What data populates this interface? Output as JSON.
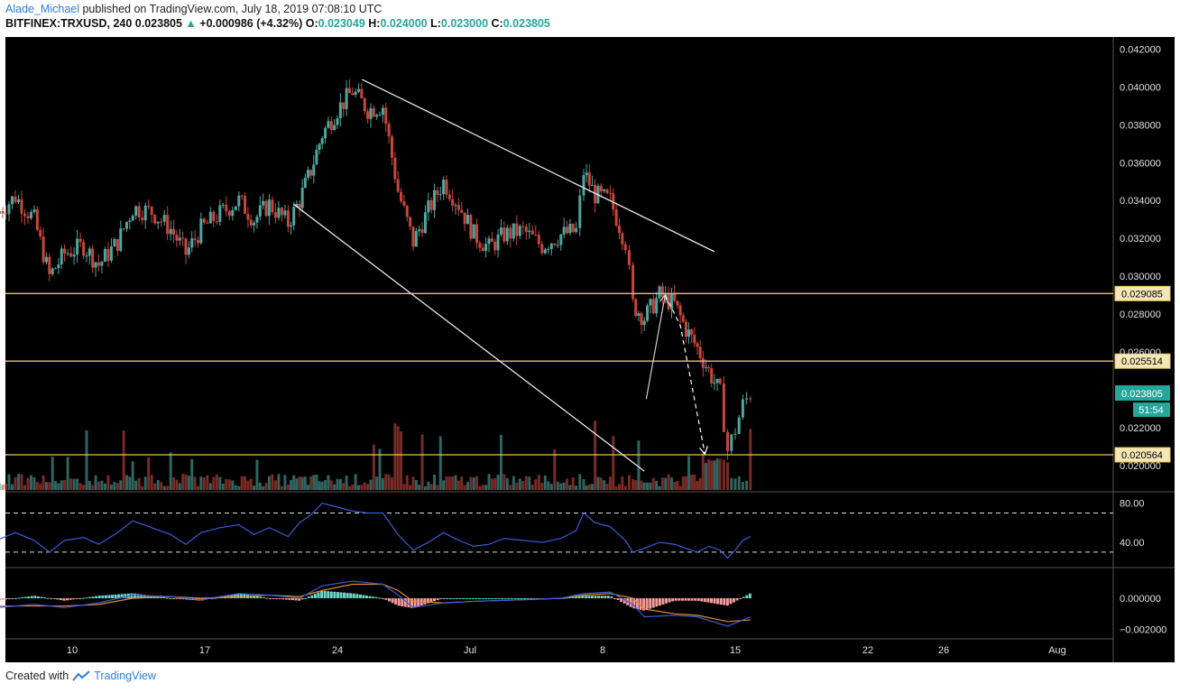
{
  "header": {
    "author": "Alade_Michael",
    "published_text": "published on TradingView.com, July 18, 2019 07:08:10 UTC",
    "symbol": "BITFINEX:TRXUSD, 240",
    "last": "0.023805",
    "change_arrow": "▲",
    "change": "+0.000986 (+4.32%)",
    "o_label": "O:",
    "o_value": "0.023049",
    "h_label": "H:",
    "h_value": "0.024000",
    "l_label": "L:",
    "l_value": "0.023000",
    "c_label": "C:",
    "c_value": "0.023805"
  },
  "footer": {
    "created_with": "Created with",
    "brand": "TradingView"
  },
  "colors": {
    "background": "#000000",
    "up": "#4ea6a0",
    "down": "#c8463c",
    "level_line": "#e6c45a",
    "rsi_line": "#3a5bd9",
    "macd_line": "#3a5bd9",
    "signal_line": "#e08a2c",
    "price_badge": "#26a69a"
  },
  "chart_data": [
    {
      "type": "candlestick",
      "symbol": "BITFINEX:TRXUSD",
      "timeframe": "240",
      "x_ticks": [
        "10",
        "17",
        "24",
        "Jul",
        "8",
        "15",
        "22",
        "26",
        "Aug"
      ],
      "y_ticks": [
        "0.042000",
        "0.040000",
        "0.038000",
        "0.036000",
        "0.034000",
        "0.032000",
        "0.030000",
        "0.028000",
        "0.026000",
        "0.022000",
        "0.020000"
      ],
      "ylim": [
        0.0188,
        0.0425
      ],
      "levels": [
        {
          "label": "0.029085",
          "value": 0.029085
        },
        {
          "label": "0.025514",
          "value": 0.025514
        },
        {
          "label": "0.020564",
          "value": 0.020564
        }
      ],
      "current_price_label": "0.023805",
      "countdown": "51:54",
      "trendlines": [
        {
          "name": "upper",
          "from": {
            "day": 25.3,
            "price": 0.0404
          },
          "to": {
            "day": 43.9,
            "price": 0.0313
          }
        },
        {
          "name": "lower",
          "from": {
            "day": 21.7,
            "price": 0.0338
          },
          "to": {
            "day": 40.2,
            "price": 0.0197
          }
        }
      ],
      "projection": [
        {
          "day": 40.3,
          "price": 0.0235
        },
        {
          "day": 41.3,
          "price": 0.029
        },
        {
          "day": 42.1,
          "price": 0.0274
        },
        {
          "day": 43.4,
          "price": 0.0206
        }
      ],
      "closes": [
        {
          "day": 6.0,
          "close": 0.0333
        },
        {
          "day": 7.0,
          "close": 0.0342
        },
        {
          "day": 8.0,
          "close": 0.033
        },
        {
          "day": 8.8,
          "close": 0.03
        },
        {
          "day": 9.6,
          "close": 0.0312
        },
        {
          "day": 10.6,
          "close": 0.0316
        },
        {
          "day": 11.4,
          "close": 0.0306
        },
        {
          "day": 12.4,
          "close": 0.0318
        },
        {
          "day": 13.2,
          "close": 0.0336
        },
        {
          "day": 14.2,
          "close": 0.0334
        },
        {
          "day": 15.2,
          "close": 0.0325
        },
        {
          "day": 16.0,
          "close": 0.0312
        },
        {
          "day": 16.8,
          "close": 0.0325
        },
        {
          "day": 17.8,
          "close": 0.0333
        },
        {
          "day": 18.8,
          "close": 0.034
        },
        {
          "day": 19.6,
          "close": 0.033
        },
        {
          "day": 20.4,
          "close": 0.0338
        },
        {
          "day": 21.4,
          "close": 0.0328
        },
        {
          "day": 22.0,
          "close": 0.034
        },
        {
          "day": 22.6,
          "close": 0.0356
        },
        {
          "day": 23.2,
          "close": 0.0375
        },
        {
          "day": 24.0,
          "close": 0.0388
        },
        {
          "day": 24.8,
          "close": 0.0398
        },
        {
          "day": 25.6,
          "close": 0.0388
        },
        {
          "day": 26.4,
          "close": 0.039
        },
        {
          "day": 27.2,
          "close": 0.0345
        },
        {
          "day": 28.0,
          "close": 0.0318
        },
        {
          "day": 28.8,
          "close": 0.0335
        },
        {
          "day": 29.6,
          "close": 0.035
        },
        {
          "day": 30.4,
          "close": 0.0338
        },
        {
          "day": 31.2,
          "close": 0.0322
        },
        {
          "day": 32.0,
          "close": 0.0315
        },
        {
          "day": 32.8,
          "close": 0.0322
        },
        {
          "day": 33.8,
          "close": 0.0324
        },
        {
          "day": 34.8,
          "close": 0.0316
        },
        {
          "day": 35.8,
          "close": 0.0322
        },
        {
          "day": 36.6,
          "close": 0.0324
        },
        {
          "day": 37.0,
          "close": 0.0355
        },
        {
          "day": 37.6,
          "close": 0.0343
        },
        {
          "day": 38.4,
          "close": 0.034
        },
        {
          "day": 39.2,
          "close": 0.0318
        },
        {
          "day": 39.6,
          "close": 0.0285
        },
        {
          "day": 40.2,
          "close": 0.0278
        },
        {
          "day": 41.0,
          "close": 0.029
        },
        {
          "day": 41.8,
          "close": 0.0285
        },
        {
          "day": 42.4,
          "close": 0.0272
        },
        {
          "day": 43.0,
          "close": 0.0262
        },
        {
          "day": 43.6,
          "close": 0.025
        },
        {
          "day": 44.2,
          "close": 0.0238
        },
        {
          "day": 44.6,
          "close": 0.0208
        },
        {
          "day": 45.0,
          "close": 0.0219
        },
        {
          "day": 45.4,
          "close": 0.0232
        },
        {
          "day": 45.8,
          "close": 0.0238
        }
      ]
    },
    {
      "type": "line",
      "name": "RSI",
      "y_ticks": [
        "80.00",
        "40.00"
      ],
      "ylim": [
        17,
        88
      ],
      "bands": [
        70,
        30
      ],
      "points": [
        {
          "day": 6.0,
          "value": 42
        },
        {
          "day": 7.0,
          "value": 50
        },
        {
          "day": 8.0,
          "value": 42
        },
        {
          "day": 8.8,
          "value": 30
        },
        {
          "day": 9.6,
          "value": 42
        },
        {
          "day": 10.6,
          "value": 45
        },
        {
          "day": 11.4,
          "value": 38
        },
        {
          "day": 12.4,
          "value": 50
        },
        {
          "day": 13.2,
          "value": 62
        },
        {
          "day": 14.2,
          "value": 55
        },
        {
          "day": 15.2,
          "value": 48
        },
        {
          "day": 16.0,
          "value": 38
        },
        {
          "day": 16.8,
          "value": 50
        },
        {
          "day": 17.8,
          "value": 55
        },
        {
          "day": 18.8,
          "value": 58
        },
        {
          "day": 19.6,
          "value": 48
        },
        {
          "day": 20.4,
          "value": 55
        },
        {
          "day": 21.4,
          "value": 46
        },
        {
          "day": 22.0,
          "value": 60
        },
        {
          "day": 22.6,
          "value": 68
        },
        {
          "day": 23.2,
          "value": 80
        },
        {
          "day": 24.0,
          "value": 76
        },
        {
          "day": 24.8,
          "value": 72
        },
        {
          "day": 25.6,
          "value": 70
        },
        {
          "day": 26.4,
          "value": 70
        },
        {
          "day": 27.2,
          "value": 48
        },
        {
          "day": 28.0,
          "value": 32
        },
        {
          "day": 28.8,
          "value": 40
        },
        {
          "day": 29.6,
          "value": 50
        },
        {
          "day": 30.4,
          "value": 42
        },
        {
          "day": 31.2,
          "value": 36
        },
        {
          "day": 32.0,
          "value": 38
        },
        {
          "day": 32.8,
          "value": 44
        },
        {
          "day": 33.8,
          "value": 42
        },
        {
          "day": 34.8,
          "value": 40
        },
        {
          "day": 35.8,
          "value": 44
        },
        {
          "day": 36.6,
          "value": 52
        },
        {
          "day": 37.0,
          "value": 70
        },
        {
          "day": 37.6,
          "value": 60
        },
        {
          "day": 38.4,
          "value": 56
        },
        {
          "day": 39.2,
          "value": 42
        },
        {
          "day": 39.6,
          "value": 30
        },
        {
          "day": 40.2,
          "value": 34
        },
        {
          "day": 41.0,
          "value": 40
        },
        {
          "day": 41.8,
          "value": 38
        },
        {
          "day": 42.4,
          "value": 34
        },
        {
          "day": 43.0,
          "value": 30
        },
        {
          "day": 43.6,
          "value": 36
        },
        {
          "day": 44.2,
          "value": 32
        },
        {
          "day": 44.6,
          "value": 24
        },
        {
          "day": 45.0,
          "value": 32
        },
        {
          "day": 45.4,
          "value": 42
        },
        {
          "day": 45.8,
          "value": 46
        }
      ]
    },
    {
      "type": "line",
      "name": "MACD",
      "y_ticks": [
        "0.000000",
        "−0.002000"
      ],
      "ylim": [
        -0.0025,
        0.0018
      ],
      "macd": [
        {
          "day": 6.0,
          "value": -0.0006
        },
        {
          "day": 8.0,
          "value": -0.0004
        },
        {
          "day": 9.6,
          "value": -0.0006
        },
        {
          "day": 11.4,
          "value": -0.0003
        },
        {
          "day": 13.2,
          "value": 0.0002
        },
        {
          "day": 15.2,
          "value": 0.0001
        },
        {
          "day": 16.8,
          "value": -0.0001
        },
        {
          "day": 18.8,
          "value": 0.0003
        },
        {
          "day": 20.4,
          "value": 0.0002
        },
        {
          "day": 22.0,
          "value": 0.0
        },
        {
          "day": 23.2,
          "value": 0.0008
        },
        {
          "day": 24.8,
          "value": 0.0011
        },
        {
          "day": 26.4,
          "value": 0.0009
        },
        {
          "day": 27.2,
          "value": 0.0002
        },
        {
          "day": 28.0,
          "value": -0.0006
        },
        {
          "day": 29.6,
          "value": -0.0003
        },
        {
          "day": 31.2,
          "value": -0.0002
        },
        {
          "day": 33.8,
          "value": -0.0001
        },
        {
          "day": 35.8,
          "value": 0.0
        },
        {
          "day": 37.0,
          "value": 0.0003
        },
        {
          "day": 38.4,
          "value": 0.0004
        },
        {
          "day": 39.6,
          "value": -0.0004
        },
        {
          "day": 40.2,
          "value": -0.0012
        },
        {
          "day": 41.8,
          "value": -0.0011
        },
        {
          "day": 43.0,
          "value": -0.0012
        },
        {
          "day": 44.6,
          "value": -0.0018
        },
        {
          "day": 45.8,
          "value": -0.0012
        }
      ],
      "signal": [
        {
          "day": 6.0,
          "value": -0.0005
        },
        {
          "day": 8.0,
          "value": -0.0005
        },
        {
          "day": 9.6,
          "value": -0.0005
        },
        {
          "day": 11.4,
          "value": -0.0004
        },
        {
          "day": 13.2,
          "value": 0.0
        },
        {
          "day": 15.2,
          "value": 0.0001
        },
        {
          "day": 16.8,
          "value": 0.0
        },
        {
          "day": 18.8,
          "value": 0.0001
        },
        {
          "day": 20.4,
          "value": 0.0002
        },
        {
          "day": 22.0,
          "value": 0.0001
        },
        {
          "day": 23.2,
          "value": 0.0005
        },
        {
          "day": 24.8,
          "value": 0.0009
        },
        {
          "day": 26.4,
          "value": 0.0009
        },
        {
          "day": 27.2,
          "value": 0.0005
        },
        {
          "day": 28.0,
          "value": -0.0002
        },
        {
          "day": 29.6,
          "value": -0.0003
        },
        {
          "day": 31.2,
          "value": -0.0002
        },
        {
          "day": 33.8,
          "value": -0.0001
        },
        {
          "day": 35.8,
          "value": 0.0
        },
        {
          "day": 37.0,
          "value": 0.0002
        },
        {
          "day": 38.4,
          "value": 0.0003
        },
        {
          "day": 39.6,
          "value": 0.0
        },
        {
          "day": 40.2,
          "value": -0.0007
        },
        {
          "day": 41.8,
          "value": -0.001
        },
        {
          "day": 43.0,
          "value": -0.0011
        },
        {
          "day": 44.6,
          "value": -0.0015
        },
        {
          "day": 45.8,
          "value": -0.0014
        }
      ]
    }
  ]
}
